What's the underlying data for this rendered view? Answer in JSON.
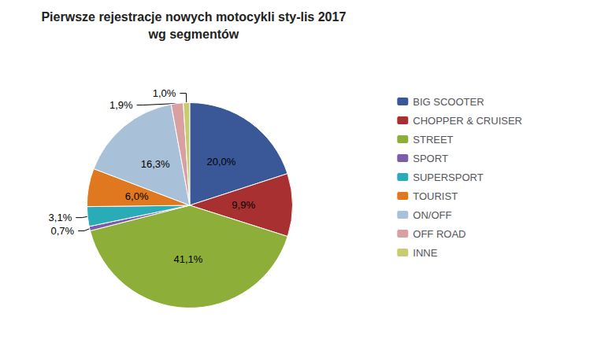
{
  "chart_data": {
    "type": "pie",
    "title": "Pierwsze rejestracje nowych motocykli sty-lis 2017",
    "subtitle": "wg segmentów",
    "categories": [
      "BIG SCOOTER",
      "CHOPPER & CRUISER",
      "STREET",
      "SPORT",
      "SUPERSPORT",
      "TOURIST",
      "ON/OFF",
      "OFF ROAD",
      "INNE"
    ],
    "values": [
      20.0,
      9.9,
      41.1,
      0.7,
      3.1,
      6.0,
      16.3,
      1.9,
      1.0
    ],
    "value_labels": [
      "20,0%",
      "9,9%",
      "41,1%",
      "0,7%",
      "3,1%",
      "6,0%",
      "16,3%",
      "1,9%",
      "1,0%"
    ],
    "colors": [
      "#3A5798",
      "#A83030",
      "#8DAF3A",
      "#7B5EA7",
      "#2AABB8",
      "#E07820",
      "#A8C0D8",
      "#D8A0A0",
      "#C8CC70"
    ],
    "data_labels": true,
    "legend": "right"
  }
}
